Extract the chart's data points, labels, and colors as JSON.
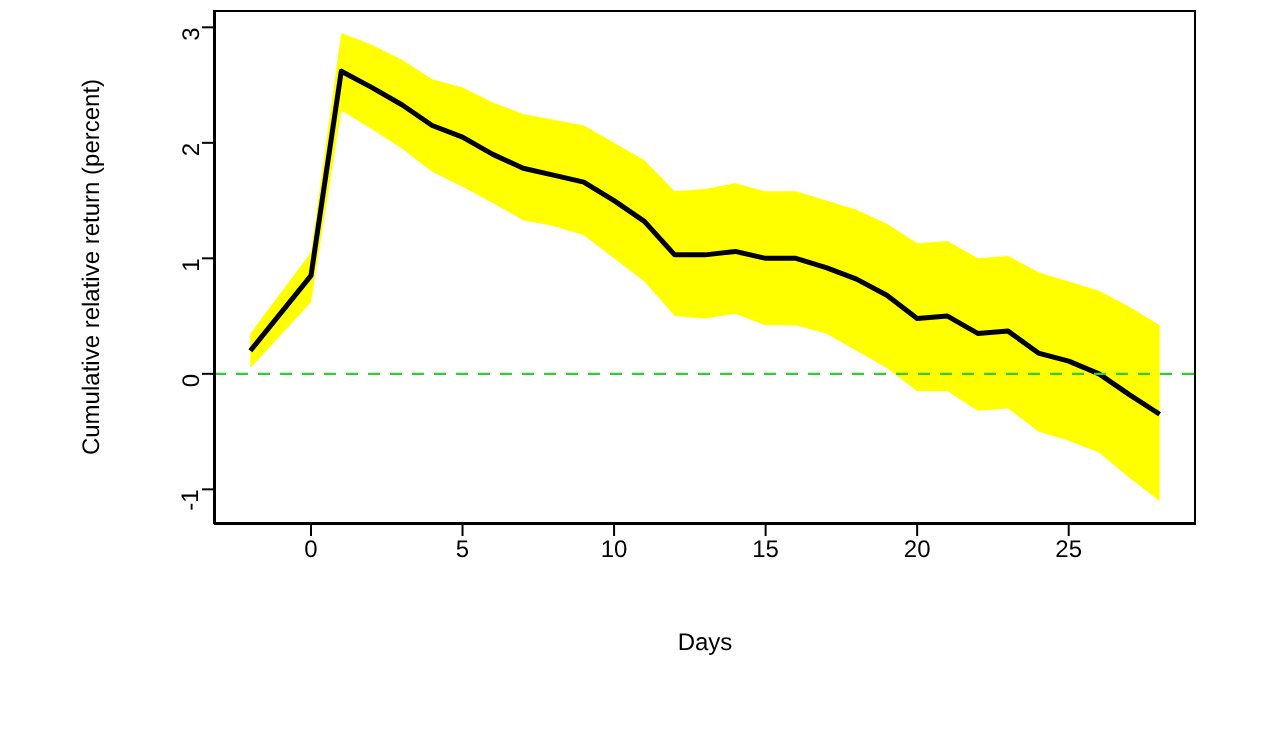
{
  "chart_data": {
    "type": "line",
    "xlabel": "Days",
    "ylabel": "Cumulative relative return (percent)",
    "xlim": [
      -3.2,
      29.2
    ],
    "xticks": [
      0,
      5,
      10,
      15,
      20,
      25
    ],
    "ylim": [
      -1.3,
      3.15
    ],
    "yticks": [
      -1,
      0,
      1,
      2,
      3
    ],
    "grid": false,
    "legend": false,
    "marker": "none",
    "line_style": "solid",
    "series": [
      {
        "color": "#000000",
        "x": [
          -2,
          0,
          1,
          2,
          3,
          4,
          5,
          6,
          7,
          8,
          9,
          10,
          11,
          12,
          13,
          14,
          15,
          16,
          17,
          18,
          19,
          20,
          21,
          22,
          23,
          24,
          25,
          26,
          27,
          28
        ],
        "values": [
          0.2,
          0.85,
          2.62,
          2.48,
          2.33,
          2.15,
          2.05,
          1.9,
          1.78,
          1.72,
          1.66,
          1.5,
          1.32,
          1.03,
          1.03,
          1.06,
          1.0,
          1.0,
          0.92,
          0.82,
          0.68,
          0.48,
          0.5,
          0.35,
          0.37,
          0.18,
          0.11,
          0.0,
          -0.18,
          -0.35
        ],
        "upper": [
          0.35,
          1.05,
          2.95,
          2.85,
          2.72,
          2.55,
          2.48,
          2.35,
          2.25,
          2.2,
          2.15,
          2.0,
          1.85,
          1.58,
          1.6,
          1.65,
          1.58,
          1.58,
          1.5,
          1.42,
          1.3,
          1.13,
          1.15,
          1.0,
          1.02,
          0.88,
          0.8,
          0.72,
          0.58,
          0.42
        ],
        "lower": [
          0.05,
          0.62,
          2.28,
          2.12,
          1.95,
          1.75,
          1.62,
          1.48,
          1.33,
          1.28,
          1.2,
          1.0,
          0.8,
          0.5,
          0.48,
          0.52,
          0.42,
          0.42,
          0.35,
          0.2,
          0.05,
          -0.15,
          -0.15,
          -0.32,
          -0.3,
          -0.5,
          -0.58,
          -0.68,
          -0.9,
          -1.1
        ]
      }
    ],
    "ref_lines": [
      {
        "axis": "y",
        "value": 0,
        "color": "#33cc33",
        "line_style": "dashed"
      }
    ]
  }
}
